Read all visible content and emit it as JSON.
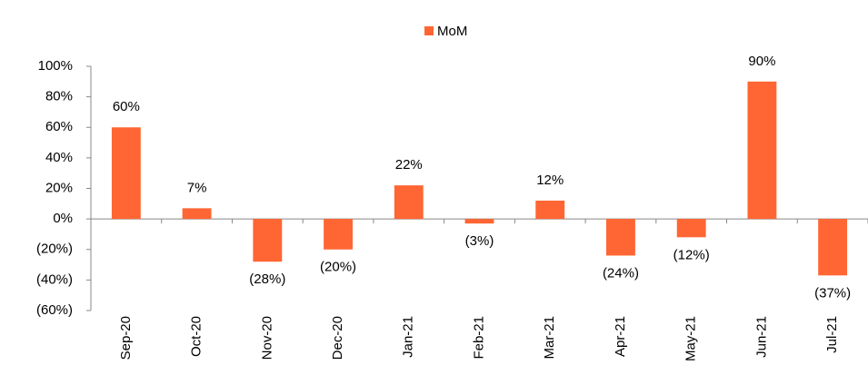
{
  "chart_data": {
    "type": "bar",
    "categories": [
      "Sep-20",
      "Oct-20",
      "Nov-20",
      "Dec-20",
      "Jan-21",
      "Feb-21",
      "Mar-21",
      "Apr-21",
      "May-21",
      "Jun-21",
      "Jul-21"
    ],
    "series": [
      {
        "name": "MoM",
        "color": "#ff6633",
        "values": [
          60,
          7,
          -28,
          -20,
          22,
          -3,
          12,
          -24,
          -12,
          90,
          -37
        ],
        "value_labels": [
          "60%",
          "7%",
          "(28%)",
          "(20%)",
          "22%",
          "(3%)",
          "12%",
          "(24%)",
          "(12%)",
          "90%",
          "(37%)"
        ]
      }
    ],
    "ylim": [
      -60,
      100
    ],
    "yticks": [
      {
        "value": -60,
        "label": "(60%)"
      },
      {
        "value": -40,
        "label": "(40%)"
      },
      {
        "value": -20,
        "label": "(20%)"
      },
      {
        "value": 0,
        "label": "0%"
      },
      {
        "value": 20,
        "label": "20%"
      },
      {
        "value": 40,
        "label": "40%"
      },
      {
        "value": 60,
        "label": "60%"
      },
      {
        "value": 80,
        "label": "80%"
      },
      {
        "value": 100,
        "label": "100%"
      }
    ],
    "legend": "top",
    "grid": false
  }
}
